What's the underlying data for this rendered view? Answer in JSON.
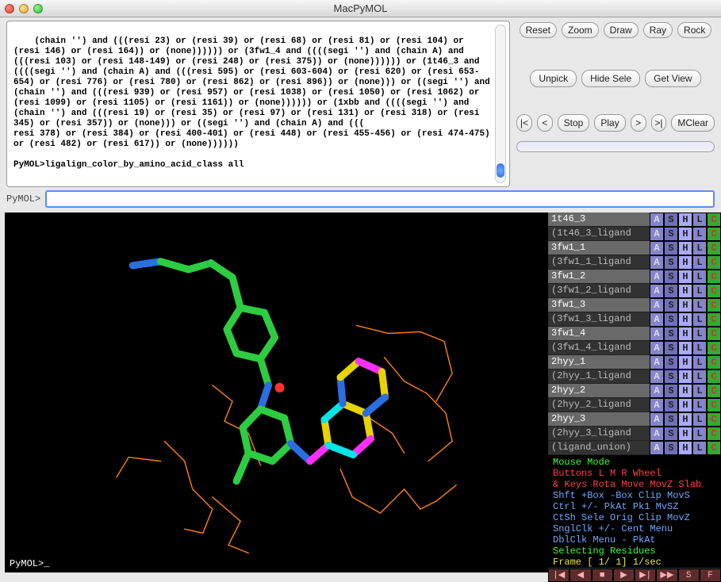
{
  "window": {
    "title": "MacPyMOL"
  },
  "console_text": "(chain '') and (((resi 23) or (resi 39) or (resi 68) or (resi 81) or (resi 104) or (resi 146) or (resi 164)) or (none)))))) or (3fw1_4 and ((((segi '') and (chain A) and (((resi 103) or (resi 148-149) or (resi 248) or (resi 375)) or (none)))))) or (1t46_3 and ((((segi '') and (chain A) and (((resi 595) or (resi 603-604) or (resi 620) or (resi 653-654) or (resi 776) or (resi 780) or (resi 862) or (resi 896)) or (none))) or ((segi '') and (chain '') and (((resi 939) or (resi 957) or (resi 1038) or (resi 1050) or (resi 1062) or (resi 1099) or (resi 1105) or (resi 1161)) or (none)))))) or (1xbb and ((((segi '') and (chain '') and (((resi 19) or (resi 35) or (resi 97) or (resi 131) or (resi 318) or (resi 345) or (resi 357)) or (none))) or ((segi '') and (chain A) and (((\nresi 378) or (resi 384) or (resi 400-401) or (resi 448) or (resi 455-456) or (resi 474-475) or (resi 482) or (resi 617)) or (none))))))\n\nPyMOL>ligalign_color_by_amino_acid_class all",
  "toolbar": {
    "row1": [
      "Reset",
      "Zoom",
      "Draw",
      "Ray",
      "Rock"
    ],
    "row2": [
      "Unpick",
      "Hide Sele",
      "Get View"
    ],
    "row3": [
      "|<",
      "<",
      "Stop",
      "Play",
      ">",
      ">|",
      "MClear"
    ]
  },
  "cmd_prompt": "PyMOL>",
  "viewport_prompt": "PyMOL>_",
  "objects": [
    {
      "name": "1t46_3",
      "sel": true
    },
    {
      "name": "(1t46_3_ligand",
      "sel": false
    },
    {
      "name": "3fw1_1",
      "sel": true
    },
    {
      "name": "(3fw1_1_ligand",
      "sel": false
    },
    {
      "name": "3fw1_2",
      "sel": true
    },
    {
      "name": "(3fw1_2_ligand",
      "sel": false
    },
    {
      "name": "3fw1_3",
      "sel": true
    },
    {
      "name": "(3fw1_3_ligand",
      "sel": false
    },
    {
      "name": "3fw1_4",
      "sel": true
    },
    {
      "name": "(3fw1_4_ligand",
      "sel": false
    },
    {
      "name": "2hyy_1",
      "sel": true
    },
    {
      "name": "(2hyy_1_ligand",
      "sel": false
    },
    {
      "name": "2hyy_2",
      "sel": true
    },
    {
      "name": "(2hyy_2_ligand",
      "sel": false
    },
    {
      "name": "2hyy_3",
      "sel": true
    },
    {
      "name": "(2hyy_3_ligand",
      "sel": false
    },
    {
      "name": "(ligand_union)",
      "sel": false
    }
  ],
  "ashlc_labels": [
    "A",
    "S",
    "H",
    "L",
    "C"
  ],
  "mouse": {
    "l1": "Mouse Mode",
    "l2": "Buttons L    M    R  Wheel",
    "l3": "& Keys Rota Move MovZ Slab",
    "l4": "  Shft +Box -Box Clip MovS",
    "l5": "  Ctrl +/-  PkAt Pk1  MvSZ",
    "l6": "  CtSh Sele Orig Clip MovZ",
    "l7": "SnglClk +/-  Cent Menu",
    "l8": "DblClk Menu  -   PkAt",
    "l9": "Selecting Residues",
    "l10": "Frame [   1/   1] 1/sec"
  },
  "vcr": [
    "|◀",
    "◀",
    "■",
    "▶",
    "▶|",
    "▶▶",
    "S",
    "F"
  ],
  "colors": {
    "green": "#2ecc40",
    "blue": "#2a6ee0",
    "yellow": "#e5d400",
    "orange": "#ff7f0e",
    "cyan": "#00e5e5",
    "magenta": "#ff30ff",
    "red": "#ff3030"
  }
}
